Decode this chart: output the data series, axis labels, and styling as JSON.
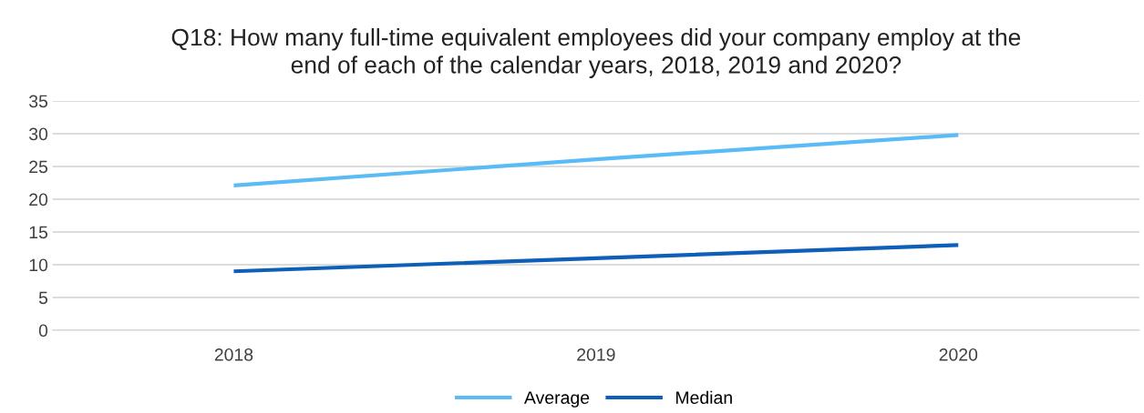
{
  "chart_data": {
    "type": "line",
    "title": "Q18: How many full-time equivalent employees did your company employ at the\nend of each of the calendar years, 2018, 2019 and 2020?",
    "categories": [
      "2018",
      "2019",
      "2020"
    ],
    "series": [
      {
        "name": "Average",
        "color": "#5bbcf5",
        "values": [
          22.1,
          26.1,
          29.8
        ]
      },
      {
        "name": "Median",
        "color": "#0d5fb8",
        "values": [
          9,
          11,
          13
        ]
      }
    ],
    "ylim": [
      0,
      35
    ],
    "yticks": [
      0,
      5,
      10,
      15,
      20,
      25,
      30,
      35
    ],
    "grid": "y",
    "legend": "bottom",
    "marker": "none",
    "line_style": "solid"
  }
}
